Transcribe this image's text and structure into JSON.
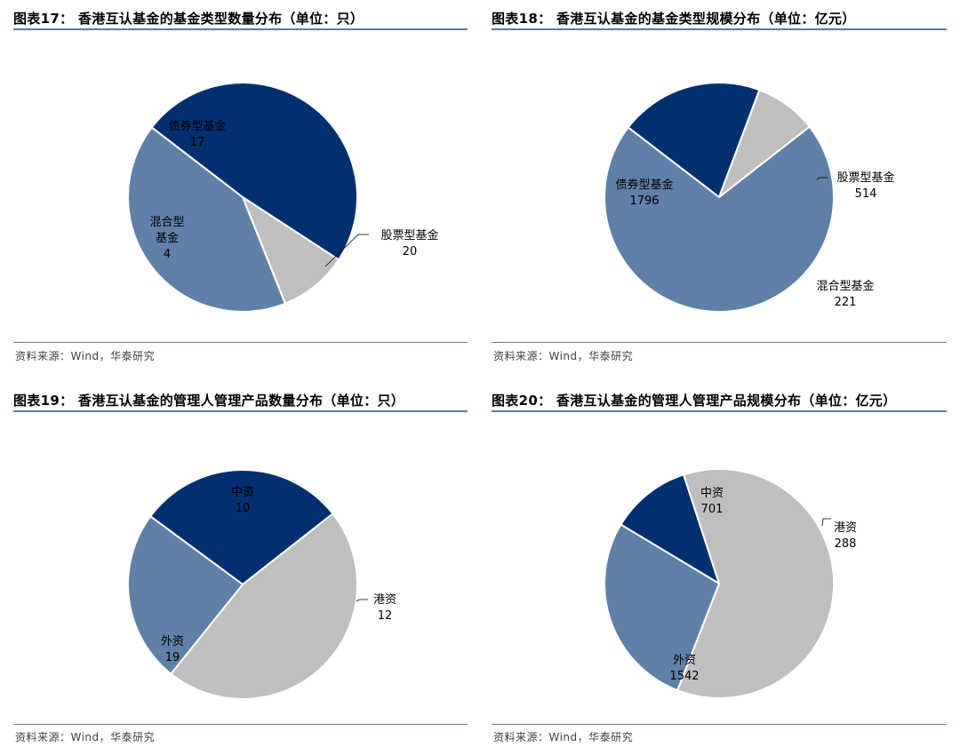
{
  "source_text": "资料来源：Wind，华泰研究",
  "colors": {
    "light_blue": "#5f80a8",
    "navy": "#003070",
    "gray": "#bfbfbf",
    "rule": "#5b7ba6"
  },
  "chart_data": [
    {
      "type": "pie",
      "title": "图表17：  香港互认基金的基金类型数量分布（单位：只）",
      "slices": [
        {
          "label": "股票型基金",
          "value": 20,
          "color": "#003070"
        },
        {
          "label": "混合型基金",
          "value": 4,
          "color": "#bfbfbf"
        },
        {
          "label": "债券型基金",
          "value": 17,
          "color": "#5f80a8"
        }
      ]
    },
    {
      "type": "pie",
      "title": "图表18：  香港互认基金的基金类型规模分布（单位：亿元）",
      "slices": [
        {
          "label": "股票型基金",
          "value": 514,
          "color": "#003070"
        },
        {
          "label": "混合型基金",
          "value": 221,
          "color": "#bfbfbf"
        },
        {
          "label": "债券型基金",
          "value": 1796,
          "color": "#5f80a8"
        }
      ]
    },
    {
      "type": "pie",
      "title": "图表19：  香港互认基金的管理人管理产品数量分布（单位：只）",
      "slices": [
        {
          "label": "港资",
          "value": 12,
          "color": "#003070"
        },
        {
          "label": "外资",
          "value": 19,
          "color": "#bfbfbf"
        },
        {
          "label": "中资",
          "value": 10,
          "color": "#5f80a8"
        }
      ]
    },
    {
      "type": "pie",
      "title": "图表20：  香港互认基金的管理人管理产品规模分布（单位：亿元）",
      "slices": [
        {
          "label": "港资",
          "value": 288,
          "color": "#003070"
        },
        {
          "label": "外资",
          "value": 1542,
          "color": "#bfbfbf"
        },
        {
          "label": "中资",
          "value": 701,
          "color": "#5f80a8"
        }
      ]
    }
  ]
}
